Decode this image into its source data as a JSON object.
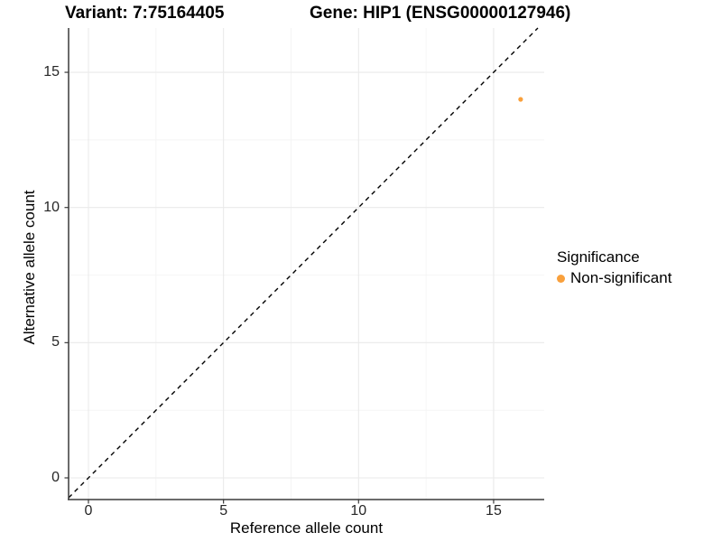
{
  "titles": {
    "variant": "Variant: 7:75164405",
    "gene": "Gene: HIP1 (ENSG00000127946)"
  },
  "legend": {
    "title": "Significance",
    "items": [
      {
        "label": "Non-significant",
        "color": "#F9A03C"
      }
    ]
  },
  "colors": {
    "point": "#F9A03C",
    "axis_line": "#3A3A3A",
    "tick_text": "#262626",
    "grid_major": "#EAEAEA",
    "grid_minor": "#F4F4F4",
    "reference_line": "#000000",
    "background": "#FFFFFF"
  },
  "chart_data": {
    "type": "scatter",
    "title": "Variant: 7:75164405   |   Gene: HIP1 (ENSG00000127946)",
    "xlabel": "Reference allele count",
    "ylabel": "Alternative allele count",
    "xlim": [
      -0.8,
      16.9
    ],
    "ylim": [
      -0.8,
      16.7
    ],
    "x_ticks": [
      0,
      5,
      10,
      15
    ],
    "y_ticks": [
      0,
      5,
      10,
      15
    ],
    "x_minor_ticks": [
      2.5,
      7.5,
      12.5
    ],
    "y_minor_ticks": [
      2.5,
      7.5,
      12.5
    ],
    "grid": "major+minor",
    "legend_position": "right",
    "series": [
      {
        "name": "Non-significant",
        "color": "#F9A03C",
        "points": [
          {
            "x": 16,
            "y": 14
          }
        ]
      }
    ],
    "reference_line": {
      "type": "identity",
      "equation": "y = x",
      "style": "dashed",
      "color": "#000000"
    }
  }
}
